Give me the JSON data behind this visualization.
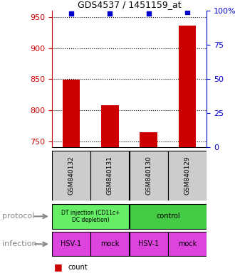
{
  "title": "GDS4537 / 1451159_at",
  "samples": [
    "GSM840132",
    "GSM840131",
    "GSM840130",
    "GSM840129"
  ],
  "bar_values": [
    849,
    808,
    764,
    936
  ],
  "percentile_values": [
    98,
    98,
    98,
    99
  ],
  "ylim_left": [
    740,
    960
  ],
  "ylim_right": [
    0,
    100
  ],
  "yticks_left": [
    750,
    800,
    850,
    900,
    950
  ],
  "yticks_right": [
    0,
    25,
    50,
    75,
    100
  ],
  "bar_color": "#cc0000",
  "dot_color": "#0000cc",
  "bar_width": 0.45,
  "infection_labels": [
    "HSV-1",
    "mock",
    "HSV-1",
    "mock"
  ],
  "infection_color": "#dd44dd",
  "sample_bg_color": "#cccccc",
  "left_axis_color": "#cc0000",
  "right_axis_color": "#0000cc",
  "green_light": "#66ee66",
  "green_dark": "#44cc44"
}
